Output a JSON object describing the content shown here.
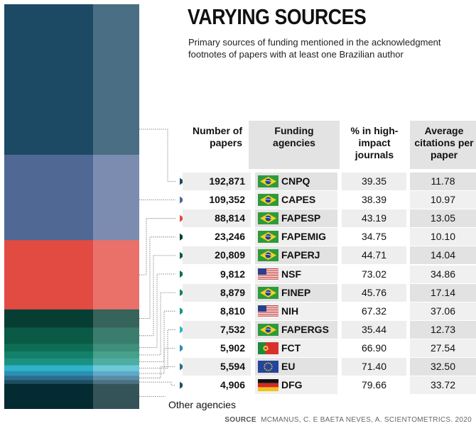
{
  "title": "VARYING SOURCES",
  "subtitle": "Primary sources of funding mentioned in the acknowledgment footnotes of papers with at least one Brazilian author",
  "headers": {
    "papers": "Number of papers",
    "agency": "Funding agencies",
    "impact": "% in high-impact journals",
    "citations": "Average citations per paper"
  },
  "other_label": "Other agencies",
  "source_label": "SOURCE",
  "source_text": "MCMANUS, C. E BAETA NEVES, A. SCIENTOMETRICS. 2020",
  "chart_data": {
    "type": "table",
    "columns": [
      "Number of papers",
      "Funding agencies",
      "% in high-impact journals",
      "Average citations per paper"
    ],
    "rows": [
      {
        "papers": "192,871",
        "agency": "CNPQ",
        "country": "brazil",
        "impact": "39.35",
        "citations": "11.78",
        "color": "#1c4a64",
        "color_light": "#4a6e83"
      },
      {
        "papers": "109,352",
        "agency": "CAPES",
        "country": "brazil",
        "impact": "38.39",
        "citations": "10.97",
        "color": "#506894",
        "color_light": "#7c8cb0"
      },
      {
        "papers": "88,814",
        "agency": "FAPESP",
        "country": "brazil",
        "impact": "43.19",
        "citations": "13.05",
        "color": "#e24b42",
        "color_light": "#e9716a"
      },
      {
        "papers": "23,246",
        "agency": "FAPEMIG",
        "country": "brazil",
        "impact": "34.75",
        "citations": "10.10",
        "color": "#073e33",
        "color_light": "#36635a"
      },
      {
        "papers": "20,809",
        "agency": "FAPERJ",
        "country": "brazil",
        "impact": "44.71",
        "citations": "14.04",
        "color": "#0b5a46",
        "color_light": "#3b7d6d"
      },
      {
        "papers": "9,812",
        "agency": "NSF",
        "country": "usa",
        "impact": "73.02",
        "citations": "34.86",
        "color": "#0b6e55",
        "color_light": "#3e8f7b"
      },
      {
        "papers": "8,879",
        "agency": "FINEP",
        "country": "brazil",
        "impact": "45.76",
        "citations": "17.14",
        "color": "#14806a",
        "color_light": "#46a08c"
      },
      {
        "papers": "8,810",
        "agency": "NIH",
        "country": "usa",
        "impact": "67.32",
        "citations": "37.06",
        "color": "#1b9182",
        "color_light": "#4eaea1"
      },
      {
        "papers": "7,532",
        "agency": "FAPERGS",
        "country": "brazil",
        "impact": "35.44",
        "citations": "12.73",
        "color": "#2eb3c8",
        "color_light": "#6ccad8"
      },
      {
        "papers": "5,902",
        "agency": "FCT",
        "country": "portugal",
        "impact": "66.90",
        "citations": "27.54",
        "color": "#2a8fb6",
        "color_light": "#5eaacb"
      },
      {
        "papers": "5,594",
        "agency": "EU",
        "country": "eu",
        "impact": "71.40",
        "citations": "32.50",
        "color": "#2c6d8a",
        "color_light": "#5a8ca3"
      },
      {
        "papers": "4,906",
        "agency": "DFG",
        "country": "germany",
        "impact": "79.66",
        "citations": "33.72",
        "color": "#1e4e62",
        "color_light": "#4c7283"
      }
    ],
    "other": {
      "label": "Other agencies",
      "color": "#042a32",
      "color_light": "#345359"
    }
  }
}
